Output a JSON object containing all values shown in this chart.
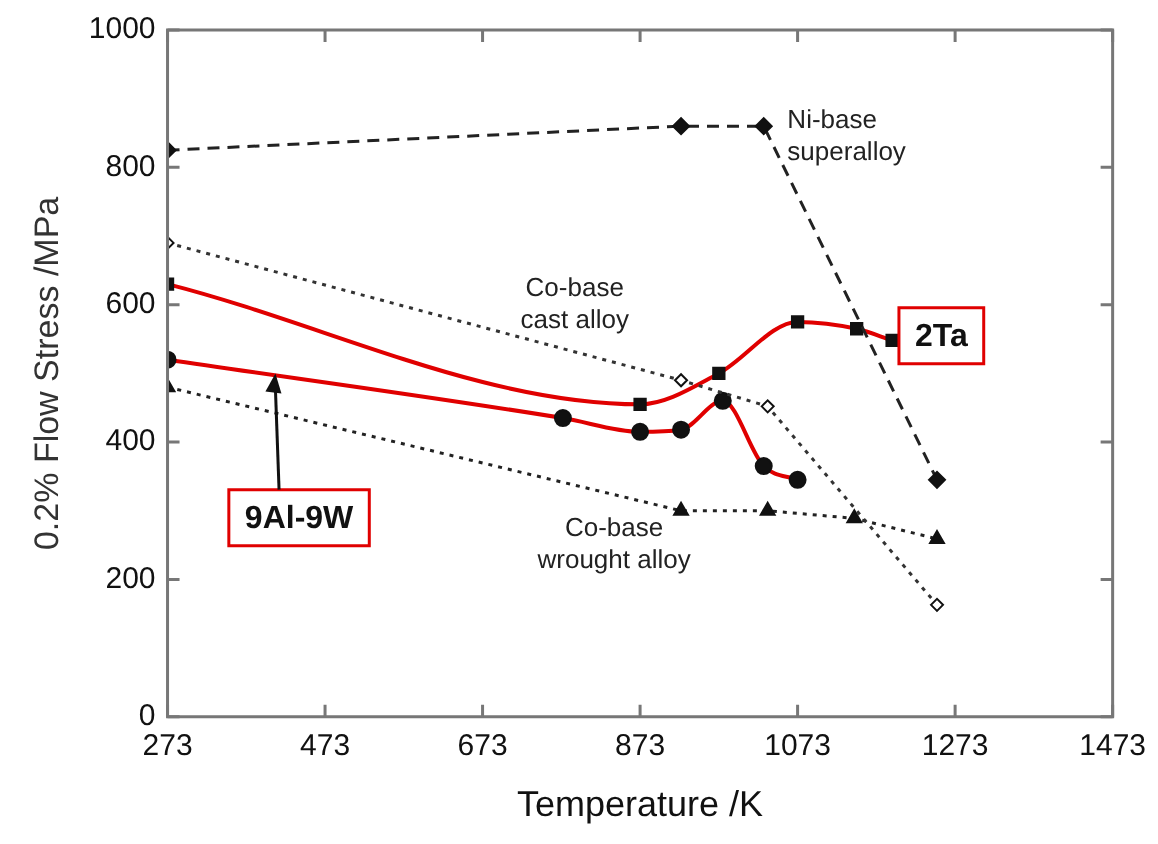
{
  "chart_data": {
    "type": "line",
    "xlabel": "Temperature /K",
    "ylabel": "0.2% Flow Stress /MPa",
    "xlim": [
      273,
      1473
    ],
    "xticks": [
      273,
      473,
      673,
      873,
      1073,
      1273,
      1473
    ],
    "ylim": [
      0,
      1000
    ],
    "yticks": [
      0,
      200,
      400,
      600,
      800,
      1000
    ],
    "grid": false,
    "legend": false,
    "series": [
      {
        "name": "Ni-base superalloy",
        "color": "#222222",
        "marker": "diamond",
        "line_style": "dashed",
        "x": [
          273,
          925,
          1030,
          1250
        ],
        "values": [
          825,
          860,
          860,
          345
        ]
      },
      {
        "name": "Co-base cast alloy",
        "color": "#333333",
        "marker": "diamond",
        "line_style": "dotted",
        "x": [
          273,
          925,
          1035,
          1250
        ],
        "values": [
          690,
          490,
          452,
          163
        ]
      },
      {
        "name": "Co-base wrought alloy",
        "color": "#222222",
        "marker": "triangle",
        "line_style": "dotted",
        "x": [
          273,
          925,
          1035,
          1145,
          1250
        ],
        "values": [
          480,
          300,
          300,
          289,
          259
        ]
      },
      {
        "name": "2Ta",
        "color": "#e00000",
        "marker": "square",
        "line_style": "solid",
        "x": [
          273,
          873,
          973,
          1073,
          1148,
          1193
        ],
        "values": [
          630,
          455,
          500,
          575,
          565,
          548
        ]
      },
      {
        "name": "9Al-9W",
        "color": "#e00000",
        "marker": "circle",
        "line_style": "solid",
        "x": [
          273,
          775,
          873,
          925,
          978,
          1030,
          1073
        ],
        "values": [
          520,
          435,
          415,
          418,
          460,
          365,
          345
        ]
      }
    ]
  }
}
